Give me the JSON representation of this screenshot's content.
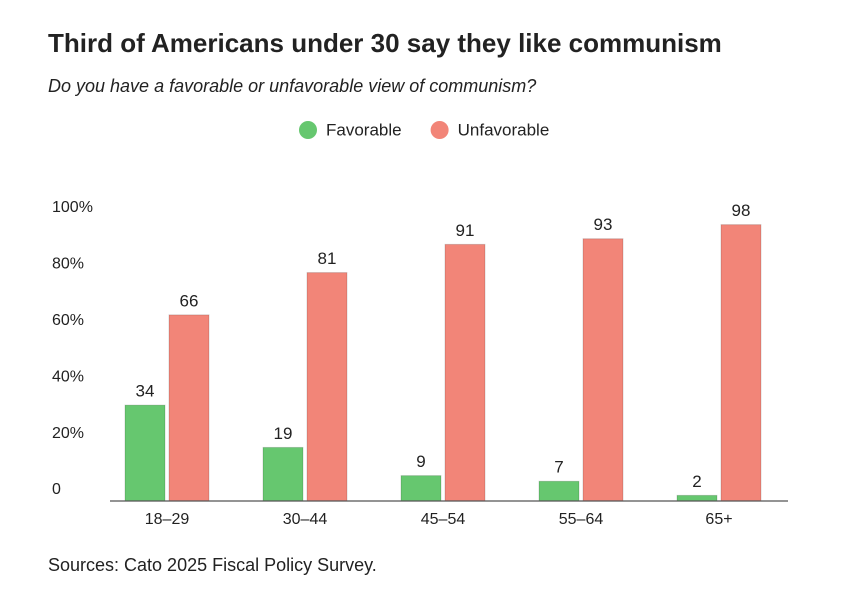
{
  "chart_data": {
    "type": "bar",
    "title": "Third of Americans under 30 say they like communism",
    "subtitle": "Do you have a favorable or unfavorable view of communism?",
    "source": "Sources: Cato 2025 Fiscal Policy Survey.",
    "categories": [
      "18–29",
      "30–44",
      "45–54",
      "55–64",
      "65+"
    ],
    "series": [
      {
        "name": "Favorable",
        "color": "#66c76f",
        "values": [
          34,
          19,
          9,
          7,
          2
        ]
      },
      {
        "name": "Unfavorable",
        "color": "#f28578",
        "values": [
          66,
          81,
          91,
          93,
          98
        ]
      }
    ],
    "ylim": [
      0,
      100
    ],
    "yticks": [
      0,
      {
        "value": 20,
        "label": "20%"
      },
      {
        "value": 40,
        "label": "40%"
      },
      {
        "value": 60,
        "label": "60%"
      },
      {
        "value": 80,
        "label": "80%"
      },
      {
        "value": 100,
        "label": "100%"
      }
    ],
    "grid": false
  }
}
